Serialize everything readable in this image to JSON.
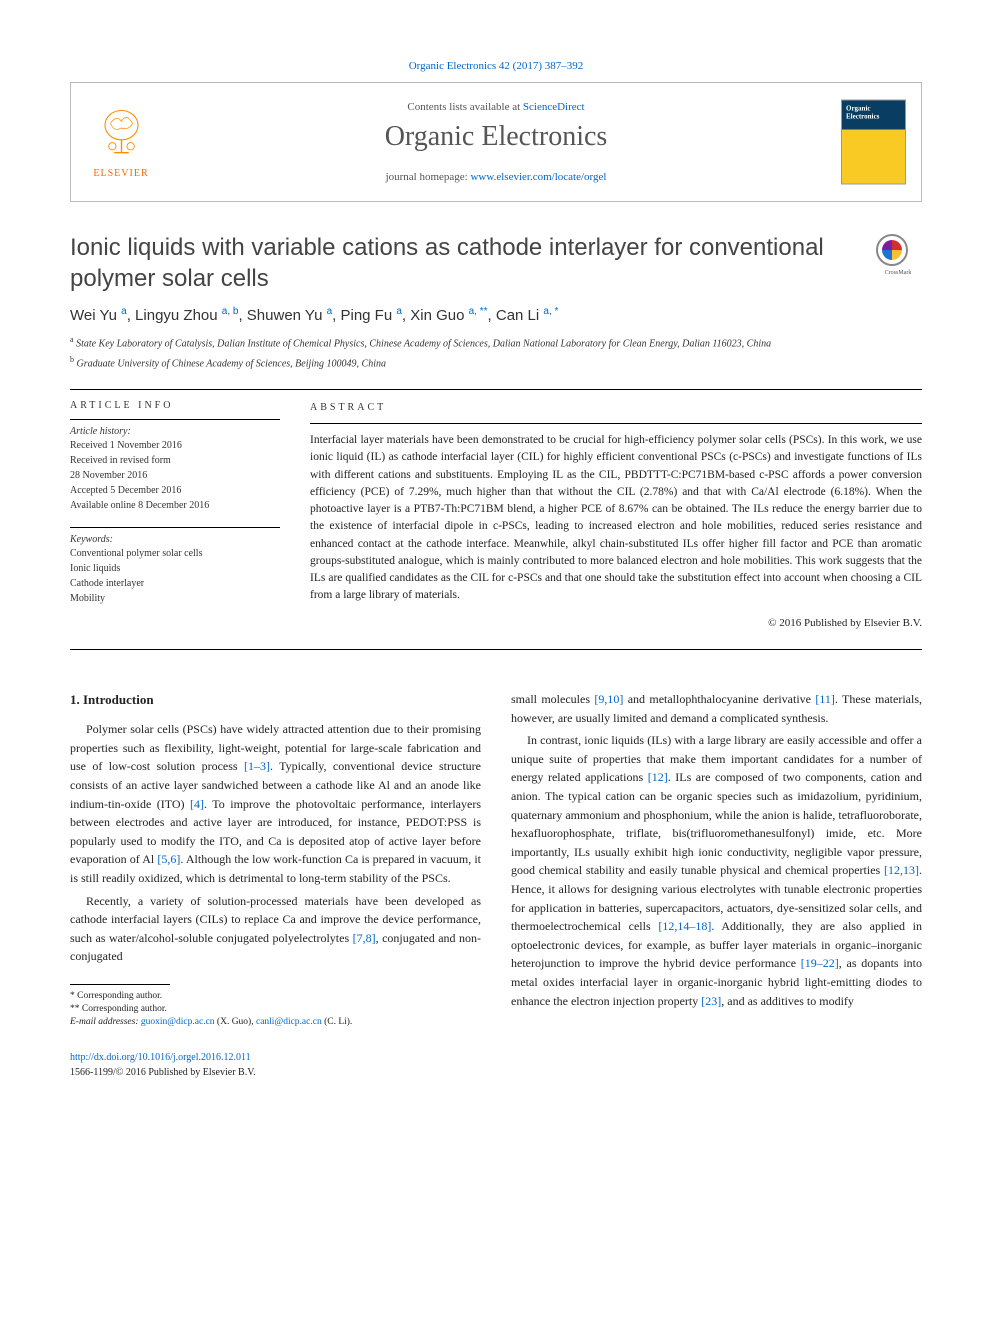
{
  "citation": "Organic Electronics 42 (2017) 387–392",
  "header": {
    "contents_prefix": "Contents lists available at ",
    "contents_link": "ScienceDirect",
    "journal_name": "Organic Electronics",
    "homepage_prefix": "journal homepage: ",
    "homepage_link": "www.elsevier.com/locate/orgel",
    "publisher": "ELSEVIER",
    "cover_title": "Organic Electronics"
  },
  "title": "Ionic liquids with variable cations as cathode interlayer for conventional polymer solar cells",
  "crossmark_label": "CrossMark",
  "authors_html": "Wei Yu <sup>a</sup>, Lingyu Zhou <sup>a, b</sup>, Shuwen Yu <sup>a</sup>, Ping Fu <sup>a</sup>, Xin Guo <sup>a, **</sup>, Can Li <sup>a, *</sup>",
  "affiliations": [
    {
      "sup": "a",
      "text": "State Key Laboratory of Catalysis, Dalian Institute of Chemical Physics, Chinese Academy of Sciences, Dalian National Laboratory for Clean Energy, Dalian 116023, China"
    },
    {
      "sup": "b",
      "text": "Graduate University of Chinese Academy of Sciences, Beijing 100049, China"
    }
  ],
  "article_info": {
    "heading": "article info",
    "history_label": "Article history:",
    "history": [
      "Received 1 November 2016",
      "Received in revised form",
      "28 November 2016",
      "Accepted 5 December 2016",
      "Available online 8 December 2016"
    ],
    "keywords_label": "Keywords:",
    "keywords": [
      "Conventional polymer solar cells",
      "Ionic liquids",
      "Cathode interlayer",
      "Mobility"
    ]
  },
  "abstract": {
    "heading": "abstract",
    "text": "Interfacial layer materials have been demonstrated to be crucial for high-efficiency polymer solar cells (PSCs). In this work, we use ionic liquid (IL) as cathode interfacial layer (CIL) for highly efficient conventional PSCs (c-PSCs) and investigate functions of ILs with different cations and substituents. Employing IL as the CIL, PBDTTT-C:PC71BM-based c-PSC affords a power conversion efficiency (PCE) of 7.29%, much higher than that without the CIL (2.78%) and that with Ca/Al electrode (6.18%). When the photoactive layer is a PTB7-Th:PC71BM blend, a higher PCE of 8.67% can be obtained. The ILs reduce the energy barrier due to the existence of interfacial dipole in c-PSCs, leading to increased electron and hole mobilities, reduced series resistance and enhanced contact at the cathode interface. Meanwhile, alkyl chain-substituted ILs offer higher fill factor and PCE than aromatic groups-substituted analogue, which is mainly contributed to more balanced electron and hole mobilities. This work suggests that the ILs are qualified candidates as the CIL for c-PSCs and that one should take the substitution effect into account when choosing a CIL from a large library of materials.",
    "copyright": "© 2016 Published by Elsevier B.V."
  },
  "body": {
    "section1_title": "1. Introduction",
    "col1": {
      "p1": "Polymer solar cells (PSCs) have widely attracted attention due to their promising properties such as flexibility, light-weight, potential for large-scale fabrication and use of low-cost solution process [1–3]. Typically, conventional device structure consists of an active layer sandwiched between a cathode like Al and an anode like indium-tin-oxide (ITO) [4]. To improve the photovoltaic performance, interlayers between electrodes and active layer are introduced, for instance, PEDOT:PSS is popularly used to modify the ITO, and Ca is deposited atop of active layer before evaporation of Al [5,6]. Although the low work-function Ca is prepared in vacuum, it is still readily oxidized, which is detrimental to long-term stability of the PSCs.",
      "p2": "Recently, a variety of solution-processed materials have been developed as cathode interfacial layers (CILs) to replace Ca and improve the device performance, such as water/alcohol-soluble conjugated polyelectrolytes [7,8], conjugated and non-conjugated"
    },
    "col2": {
      "p1": "small molecules [9,10] and metallophthalocyanine derivative [11]. These materials, however, are usually limited and demand a complicated synthesis.",
      "p2": "In contrast, ionic liquids (ILs) with a large library are easily accessible and offer a unique suite of properties that make them important candidates for a number of energy related applications [12]. ILs are composed of two components, cation and anion. The typical cation can be organic species such as imidazolium, pyridinium, quaternary ammonium and phosphonium, while the anion is halide, tetrafluoroborate, hexafluorophosphate, triflate, bis(trifluoromethanesulfonyl) imide, etc. More importantly, ILs usually exhibit high ionic conductivity, negligible vapor pressure, good chemical stability and easily tunable physical and chemical properties [12,13]. Hence, it allows for designing various electrolytes with tunable electronic properties for application in batteries, supercapacitors, actuators, dye-sensitized solar cells, and thermoelectrochemical cells [12,14–18]. Additionally, they are also applied in optoelectronic devices, for example, as buffer layer materials in organic–inorganic heterojunction to improve the hybrid device performance [19–22], as dopants into metal oxides interfacial layer in organic-inorganic hybrid light-emitting diodes to enhance the electron injection property [23], and as additives to modify"
    }
  },
  "footnotes": {
    "corr1": "* Corresponding author.",
    "corr2": "** Corresponding author.",
    "email_label": "E-mail addresses: ",
    "email1": "guoxin@dicp.ac.cn",
    "email1_who": " (X. Guo), ",
    "email2": "canli@dicp.ac.cn",
    "email2_who": " (C. Li)."
  },
  "doi": {
    "url": "http://dx.doi.org/10.1016/j.orgel.2016.12.011",
    "issn_line": "1566-1199/© 2016 Published by Elsevier B.V."
  },
  "colors": {
    "link": "#0066cc",
    "elsevier_orange": "#ff6600"
  }
}
